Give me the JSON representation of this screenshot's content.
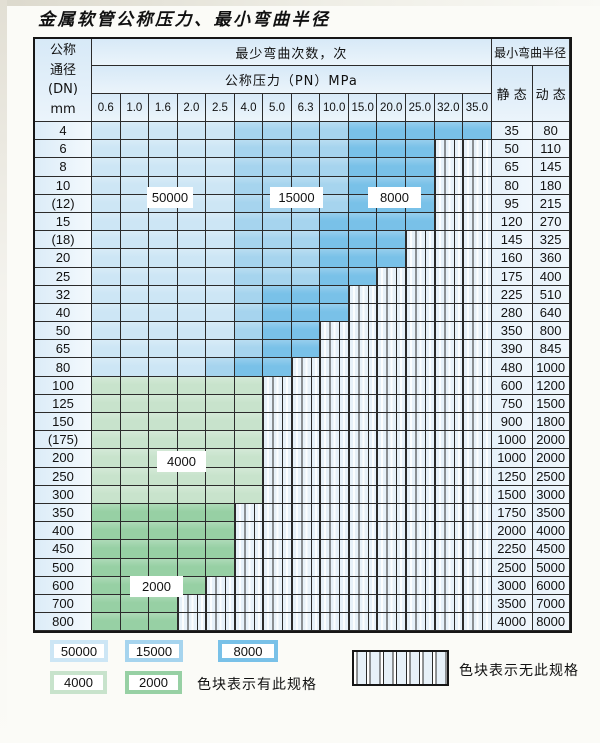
{
  "title": "金属软管公称压力、最小弯曲半径",
  "table": {
    "header": {
      "dn_lines": [
        "公称",
        "通径",
        "(DN)",
        "mm"
      ],
      "bend_cycles": "最少弯曲次数，次",
      "pressure": "公称压力（PN）MPa",
      "pressure_values": [
        "0.6",
        "1.0",
        "1.6",
        "2.0",
        "2.5",
        "4.0",
        "5.0",
        "6.3",
        "10.0",
        "15.0",
        "20.0",
        "25.0",
        "32.0",
        "35.0"
      ],
      "radius_title": "最小弯曲半径",
      "static_label": "静 态",
      "dynamic_label": "动 态"
    },
    "rows": [
      {
        "dn": "4",
        "static": "35",
        "dynamic": "80",
        "bands": [
          {
            "b": "L",
            "n": 5
          },
          {
            "b": "M",
            "n": 4
          },
          {
            "b": "D",
            "n": 5
          }
        ]
      },
      {
        "dn": "6",
        "static": "50",
        "dynamic": "110",
        "bands": [
          {
            "b": "L",
            "n": 5
          },
          {
            "b": "M",
            "n": 4
          },
          {
            "b": "D",
            "n": 3
          }
        ]
      },
      {
        "dn": "8",
        "static": "65",
        "dynamic": "145",
        "bands": [
          {
            "b": "L",
            "n": 5
          },
          {
            "b": "M",
            "n": 4
          },
          {
            "b": "D",
            "n": 3
          }
        ]
      },
      {
        "dn": "10",
        "static": "80",
        "dynamic": "180",
        "bands": [
          {
            "b": "L",
            "n": 5
          },
          {
            "b": "M",
            "n": 4
          },
          {
            "b": "D",
            "n": 3
          }
        ]
      },
      {
        "dn": "(12)",
        "static": "95",
        "dynamic": "215",
        "bands": [
          {
            "b": "L",
            "n": 5
          },
          {
            "b": "M",
            "n": 4
          },
          {
            "b": "D",
            "n": 3
          }
        ]
      },
      {
        "dn": "15",
        "static": "120",
        "dynamic": "270",
        "bands": [
          {
            "b": "L",
            "n": 5
          },
          {
            "b": "M",
            "n": 3
          },
          {
            "b": "D",
            "n": 4
          }
        ]
      },
      {
        "dn": "(18)",
        "static": "145",
        "dynamic": "325",
        "bands": [
          {
            "b": "L",
            "n": 5
          },
          {
            "b": "M",
            "n": 3
          },
          {
            "b": "D",
            "n": 3
          }
        ]
      },
      {
        "dn": "20",
        "static": "160",
        "dynamic": "360",
        "bands": [
          {
            "b": "L",
            "n": 5
          },
          {
            "b": "M",
            "n": 3
          },
          {
            "b": "D",
            "n": 3
          }
        ]
      },
      {
        "dn": "25",
        "static": "175",
        "dynamic": "400",
        "bands": [
          {
            "b": "L",
            "n": 5
          },
          {
            "b": "M",
            "n": 3
          },
          {
            "b": "D",
            "n": 2
          }
        ]
      },
      {
        "dn": "32",
        "static": "225",
        "dynamic": "510",
        "bands": [
          {
            "b": "L",
            "n": 5
          },
          {
            "b": "M",
            "n": 1
          },
          {
            "b": "D",
            "n": 3
          }
        ]
      },
      {
        "dn": "40",
        "static": "280",
        "dynamic": "640",
        "bands": [
          {
            "b": "L",
            "n": 5
          },
          {
            "b": "M",
            "n": 1
          },
          {
            "b": "D",
            "n": 3
          }
        ]
      },
      {
        "dn": "50",
        "static": "350",
        "dynamic": "800",
        "bands": [
          {
            "b": "L",
            "n": 5
          },
          {
            "b": "M",
            "n": 1
          },
          {
            "b": "D",
            "n": 2
          }
        ]
      },
      {
        "dn": "65",
        "static": "390",
        "dynamic": "845",
        "bands": [
          {
            "b": "L",
            "n": 5
          },
          {
            "b": "M",
            "n": 1
          },
          {
            "b": "D",
            "n": 2
          }
        ]
      },
      {
        "dn": "80",
        "static": "480",
        "dynamic": "1000",
        "bands": [
          {
            "b": "L",
            "n": 4
          },
          {
            "b": "M",
            "n": 1
          },
          {
            "b": "D",
            "n": 2
          }
        ]
      },
      {
        "dn": "100",
        "static": "600",
        "dynamic": "1200",
        "bands": [
          {
            "b": "G",
            "n": 6
          }
        ]
      },
      {
        "dn": "125",
        "static": "750",
        "dynamic": "1500",
        "bands": [
          {
            "b": "G",
            "n": 6
          }
        ]
      },
      {
        "dn": "150",
        "static": "900",
        "dynamic": "1800",
        "bands": [
          {
            "b": "G",
            "n": 6
          }
        ]
      },
      {
        "dn": "(175)",
        "static": "1000",
        "dynamic": "2000",
        "bands": [
          {
            "b": "G",
            "n": 6
          }
        ]
      },
      {
        "dn": "200",
        "static": "1000",
        "dynamic": "2000",
        "bands": [
          {
            "b": "G",
            "n": 6
          }
        ]
      },
      {
        "dn": "250",
        "static": "1250",
        "dynamic": "2500",
        "bands": [
          {
            "b": "G",
            "n": 6
          }
        ]
      },
      {
        "dn": "300",
        "static": "1500",
        "dynamic": "3000",
        "bands": [
          {
            "b": "G",
            "n": 6
          }
        ]
      },
      {
        "dn": "350",
        "static": "1750",
        "dynamic": "3500",
        "bands": [
          {
            "b": "H",
            "n": 5
          }
        ]
      },
      {
        "dn": "400",
        "static": "2000",
        "dynamic": "4000",
        "bands": [
          {
            "b": "H",
            "n": 5
          }
        ]
      },
      {
        "dn": "450",
        "static": "2250",
        "dynamic": "4500",
        "bands": [
          {
            "b": "H",
            "n": 5
          }
        ]
      },
      {
        "dn": "500",
        "static": "2500",
        "dynamic": "5000",
        "bands": [
          {
            "b": "H",
            "n": 5
          }
        ]
      },
      {
        "dn": "600",
        "static": "3000",
        "dynamic": "6000",
        "bands": [
          {
            "b": "H",
            "n": 4
          }
        ]
      },
      {
        "dn": "700",
        "static": "3500",
        "dynamic": "7000",
        "bands": [
          {
            "b": "H",
            "n": 3
          }
        ]
      },
      {
        "dn": "800",
        "static": "4000",
        "dynamic": "8000",
        "bands": [
          {
            "b": "H",
            "n": 3
          }
        ]
      }
    ],
    "total_pressure_columns": 14
  },
  "overlay_labels": [
    "50000",
    "15000",
    "8000",
    "4000",
    "2000"
  ],
  "legend": {
    "items": [
      {
        "key": "L",
        "label": "50000"
      },
      {
        "key": "M",
        "label": "15000"
      },
      {
        "key": "D",
        "label": "8000"
      },
      {
        "key": "G",
        "label": "4000"
      },
      {
        "key": "H",
        "label": "2000"
      }
    ],
    "has_spec_note": "色块表示有此规格",
    "no_spec_note": "色块表示无此规格"
  },
  "colors": {
    "band_L": "#cde6f5",
    "band_M": "#a6d4ee",
    "band_D": "#79c1e8",
    "band_G": "#c8e3cc",
    "band_H": "#97d0a4",
    "header_bg": "#d9eaf7",
    "label_cell_bg": "#e8f2fa",
    "stripe_fill": "#e7f1f9",
    "grid_line": "#2b2b2b"
  }
}
